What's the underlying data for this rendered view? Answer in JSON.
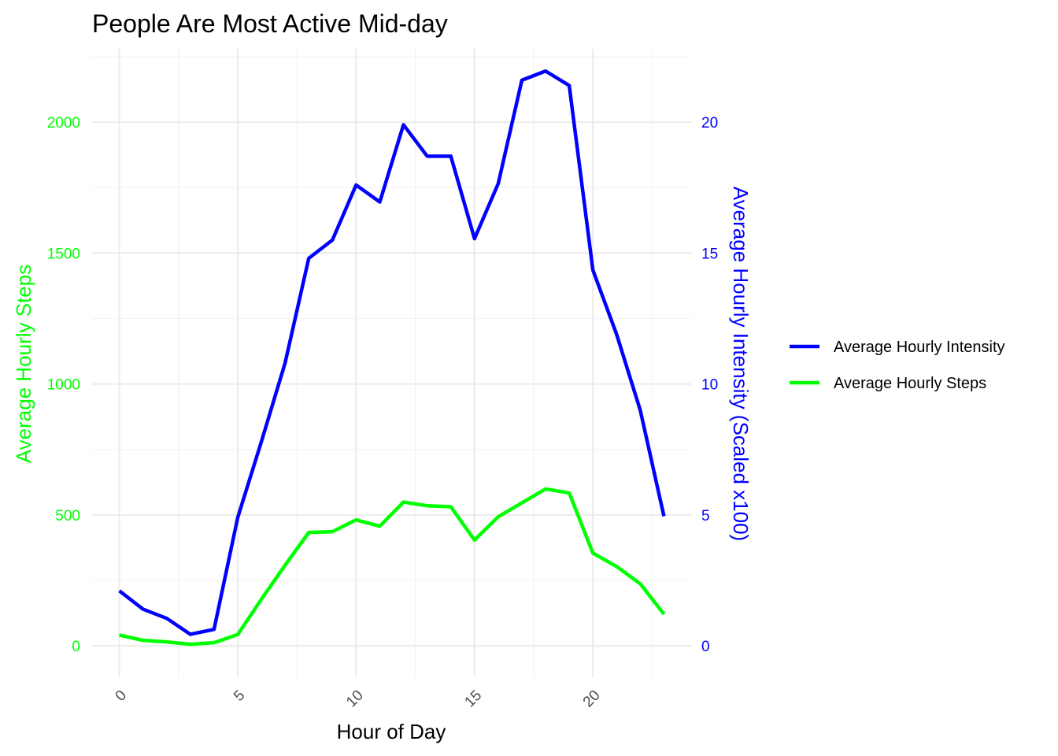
{
  "chart_data": {
    "type": "line",
    "title": "People Are Most Active Mid-day",
    "xlabel": "Hour of Day",
    "ylabel_left": "Average Hourly Steps",
    "ylabel_right": "Average Hourly Intensity (Scaled x100)",
    "xlim": [
      -1.15,
      24.15
    ],
    "ylim_left": [
      -120,
      2280
    ],
    "ylim_right": [
      -1.2,
      22.8
    ],
    "x_ticks": [
      0,
      5,
      10,
      15,
      20
    ],
    "x_tick_labels": [
      "0",
      "5",
      "10",
      "15",
      "20"
    ],
    "y_left_ticks": [
      0,
      500,
      1000,
      1500,
      2000
    ],
    "y_left_tick_labels": [
      "0",
      "500",
      "1000",
      "1500",
      "2000"
    ],
    "y_right_ticks": [
      0,
      5,
      10,
      15,
      20
    ],
    "y_right_tick_labels": [
      "0",
      "5",
      "10",
      "15",
      "20"
    ],
    "grid": true,
    "legend_position": "right",
    "x": [
      0,
      1,
      2,
      3,
      4,
      5,
      6,
      7,
      8,
      9,
      10,
      11,
      12,
      13,
      14,
      15,
      16,
      17,
      18,
      19,
      20,
      21,
      22,
      23
    ],
    "series": [
      {
        "name": "Average Hourly Intensity",
        "axis": "right",
        "color": "#0000ff",
        "values": [
          2.1,
          1.4,
          1.05,
          0.44,
          0.63,
          4.9,
          7.8,
          10.8,
          14.8,
          15.5,
          17.6,
          16.95,
          19.9,
          18.7,
          18.7,
          15.55,
          17.65,
          21.6,
          21.95,
          21.4,
          14.35,
          11.9,
          9.0,
          4.95
        ]
      },
      {
        "name": "Average Hourly Steps",
        "axis": "left",
        "color": "#00ff00",
        "values": [
          41,
          21,
          15,
          6,
          12,
          43,
          178,
          308,
          433,
          436,
          481,
          457,
          549,
          535,
          531,
          404,
          493,
          546,
          599,
          584,
          354,
          303,
          237,
          121
        ]
      }
    ],
    "left_axis_color": "#00ff00",
    "right_axis_color": "#0000ff"
  }
}
